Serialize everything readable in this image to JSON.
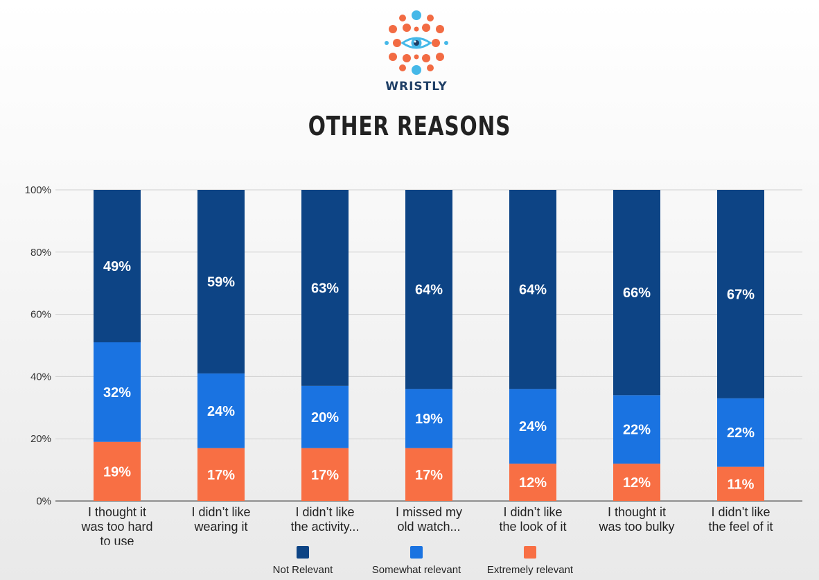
{
  "brand": {
    "name": "WRISTLY",
    "icon": "eye-icon",
    "colors": {
      "orange": "#F26B43",
      "blue": "#45B8E8",
      "dark": "#1F3F66"
    }
  },
  "chart_data": {
    "type": "bar",
    "stacked": true,
    "title": "OTHER REASONS",
    "categories": [
      [
        "I thought it",
        "was too hard",
        "to use"
      ],
      [
        "I didn’t like",
        "wearing it"
      ],
      [
        "I didn’t like",
        "the activity..."
      ],
      [
        "I missed my",
        "old watch..."
      ],
      [
        "I didn’t like",
        "the look of it"
      ],
      [
        "I thought it",
        "was too bulky"
      ],
      [
        "I didn’t like",
        "the feel of it"
      ]
    ],
    "series": [
      {
        "name": "Extremely relevant",
        "color": "#F86F44",
        "values": [
          19,
          17,
          17,
          17,
          12,
          12,
          11
        ]
      },
      {
        "name": "Somewhat relevant",
        "color": "#1A73E1",
        "values": [
          32,
          24,
          20,
          19,
          24,
          22,
          22
        ]
      },
      {
        "name": "Not Relevant",
        "color": "#0D4485",
        "values": [
          49,
          59,
          63,
          64,
          64,
          66,
          67
        ]
      }
    ],
    "ylim": [
      0,
      100
    ],
    "yticks": [
      "0%",
      "20%",
      "40%",
      "60%",
      "80%",
      "100%"
    ],
    "grid": true,
    "legend_position": "bottom",
    "legend_order": [
      "Not Relevant",
      "Somewhat relevant",
      "Extremely relevant"
    ]
  }
}
